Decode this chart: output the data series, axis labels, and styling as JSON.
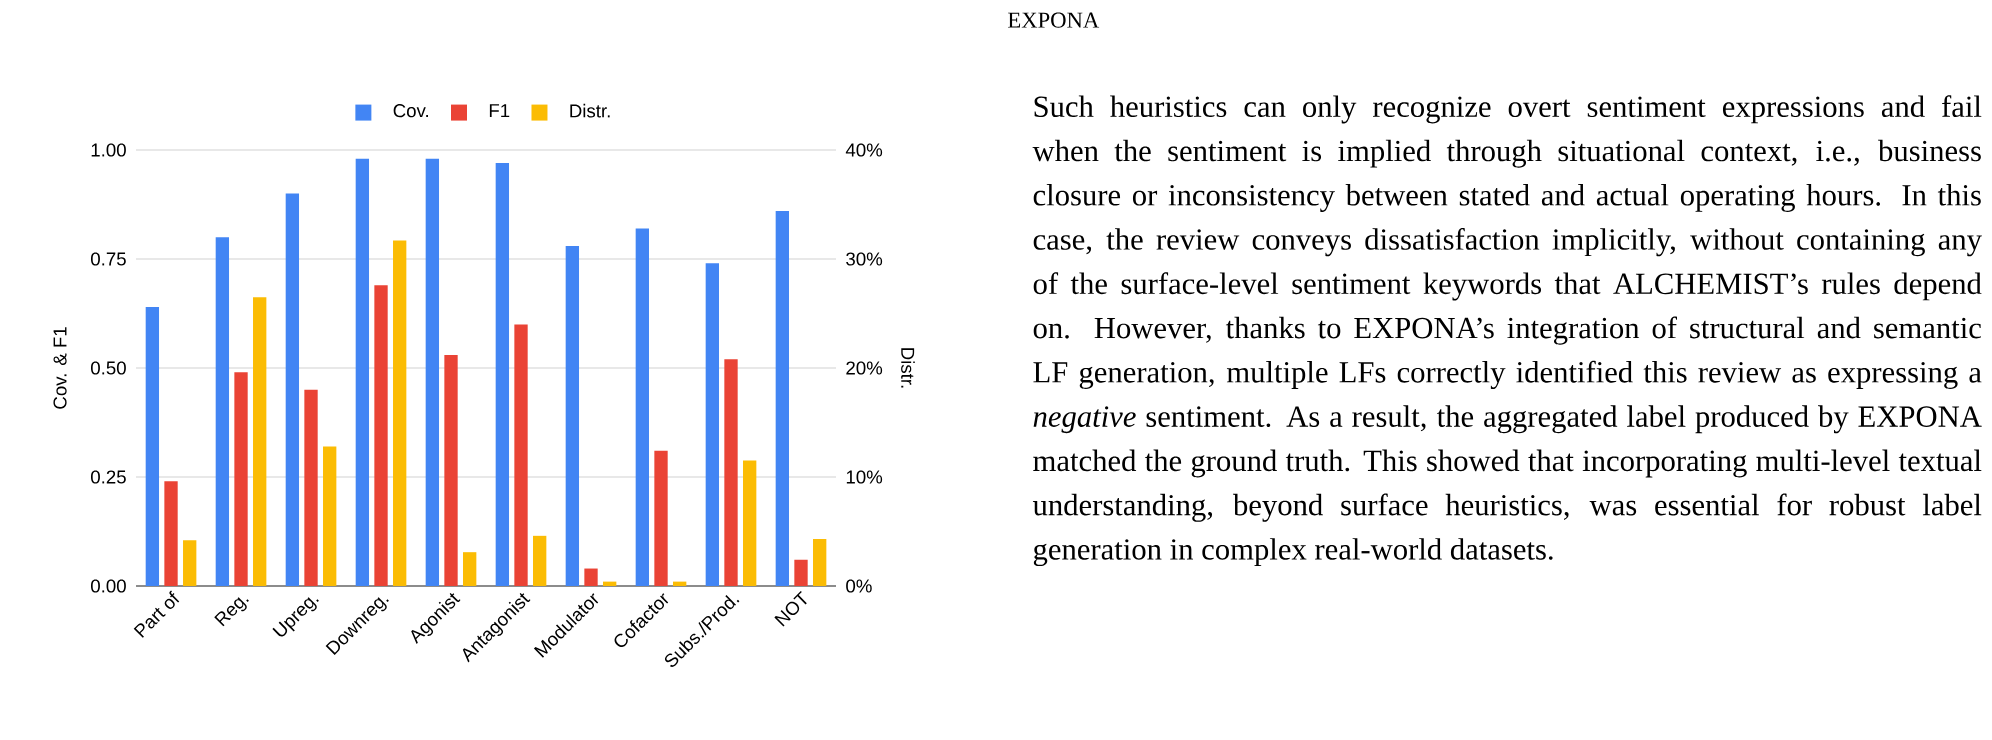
{
  "chart_data": {
    "type": "bar",
    "categories": [
      "Part of",
      "Reg.",
      "Upreg.",
      "Downreg.",
      "Agonist",
      "Antagonist",
      "Modulator",
      "Cofactor",
      "Subs./Prod.",
      "NOT"
    ],
    "series": [
      {
        "name": "Cov.",
        "color": "#4285f4",
        "values": [
          0.64,
          0.8,
          0.9,
          0.98,
          0.98,
          0.97,
          0.78,
          0.82,
          0.74,
          0.86
        ]
      },
      {
        "name": "F1",
        "color": "#ea4335",
        "values": [
          0.24,
          0.49,
          0.45,
          0.69,
          0.53,
          0.6,
          0.04,
          0.31,
          0.52,
          0.06
        ]
      },
      {
        "name": "Distr.",
        "color": "#fbbc04",
        "axis": "y2",
        "values": [
          4.2,
          26.5,
          12.8,
          31.7,
          3.1,
          4.6,
          0.4,
          0.4,
          11.5,
          4.3
        ]
      }
    ],
    "ylabel": "Cov. & F1",
    "y2label": "Distr.",
    "ylim": [
      0,
      1
    ],
    "yticks": [
      {
        "value": 0,
        "label": "0.00"
      },
      {
        "value": 0.25,
        "label": "0.25"
      },
      {
        "value": 0.5,
        "label": "0.50"
      },
      {
        "value": 0.75,
        "label": "0.75"
      },
      {
        "value": 1,
        "label": "1.00"
      }
    ],
    "y2lim": [
      0,
      40
    ],
    "y2ticks": [
      {
        "value": 0,
        "label": "0%"
      },
      {
        "value": 10,
        "label": "10%"
      },
      {
        "value": 20,
        "label": "20%"
      },
      {
        "value": 30,
        "label": "30%"
      },
      {
        "value": 40,
        "label": "40%"
      }
    ],
    "grid": "y",
    "legend": "top",
    "annotations": [
      "EXPONA",
      "Such heuristics can only recognize overt sentiment expressions and fail when the sentiment is implied through situational context, i.e., business closure or inconsistency between stated and actual operating hours. In this case, the review conveys dissatisfaction implicitly, without containing any of the surface-level sentiment keywords that ALCHEMIST’s rules depend on. However, thanks to EXPONA’s integration of structural and semantic LF generation, multiple LFs correctly identified this review as expressing a *negative* sentiment. As a result, the aggregated label produced by EXPONA matched the ground truth. This showed that incorporating multi-level textual understanding, beyond surface heuristics, was essential for robust label generation in complex real-world datasets."
    ]
  }
}
